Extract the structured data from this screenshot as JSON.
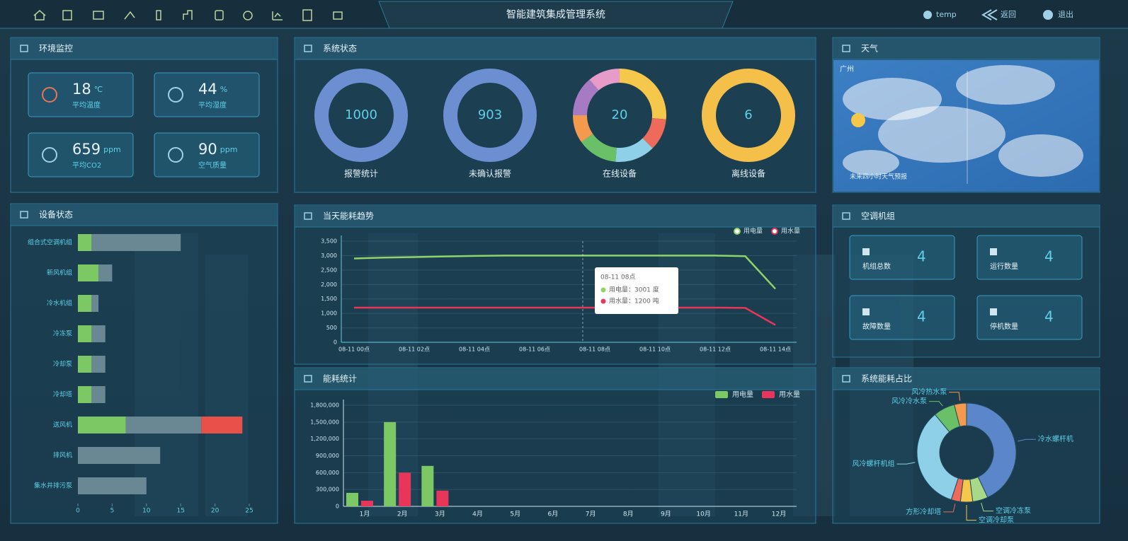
{
  "header": {
    "title": "智能建筑集成管理系统",
    "user": "temp",
    "back": "返回",
    "logout": "退出"
  },
  "environment": {
    "title": "环境监控",
    "items": [
      {
        "value": 18,
        "unit": "℃",
        "label": "平均温度"
      },
      {
        "value": 44,
        "unit": "%",
        "label": "平均湿度"
      },
      {
        "value": 659,
        "unit": "ppm",
        "label": "平均CO2"
      },
      {
        "value": 90,
        "unit": "ppm",
        "label": "空气质量"
      }
    ]
  },
  "system_status": {
    "title": "系统状态",
    "items": [
      {
        "value": 1000,
        "label": "报警统计"
      },
      {
        "value": 903,
        "label": "未确认报警"
      },
      {
        "value": 20,
        "label": "在线设备"
      },
      {
        "value": 6,
        "label": "离线设备"
      }
    ]
  },
  "weather": {
    "title": "天气",
    "city": "广州",
    "note": "未来四小时天气预报"
  },
  "aircon": {
    "title": "空调机组",
    "items": [
      {
        "label": "机组总数",
        "value": 4
      },
      {
        "label": "运行数量",
        "value": 4
      },
      {
        "label": "故障数量",
        "value": 4
      },
      {
        "label": "停机数量",
        "value": 4
      }
    ]
  },
  "chart_data": [
    {
      "type": "bar",
      "orientation": "horizontal",
      "stacked": true,
      "title": "设备状态",
      "categories": [
        "组合式空调机组",
        "新风机组",
        "冷水机组",
        "冷冻泵",
        "冷却泵",
        "冷却塔",
        "送风机",
        "排风机",
        "集水井排污泵"
      ],
      "series": [
        {
          "color": "#7cc864",
          "values": [
            2,
            3,
            2,
            2,
            2,
            2,
            7,
            0,
            0
          ]
        },
        {
          "color": "#6a8794",
          "values": [
            13,
            2,
            1,
            2,
            2,
            2,
            11,
            12,
            10
          ]
        },
        {
          "color": "#e8504a",
          "values": [
            0,
            0,
            0,
            0,
            0,
            0,
            6,
            0,
            0
          ]
        }
      ],
      "xlim": [
        0,
        25
      ],
      "xticks": [
        0,
        5,
        10,
        15,
        20,
        25
      ]
    },
    {
      "type": "line",
      "title": "当天能耗趋势",
      "categories": [
        "08-11 00点",
        null,
        "08-11 02点",
        null,
        "08-11 04点",
        null,
        "08-11 06点",
        null,
        "08-11 08点",
        null,
        "08-11 10点",
        null,
        "08-11 12点",
        null,
        "08-11 14点"
      ],
      "series": [
        {
          "name": "用电量",
          "color": "#8fd36a",
          "values": [
            2900,
            2930,
            2950,
            2970,
            2990,
            3000,
            3001,
            3001,
            3001,
            3000,
            3000,
            3000,
            3000,
            2980,
            1850
          ]
        },
        {
          "name": "用水量",
          "color": "#e8365a",
          "values": [
            1200,
            1200,
            1200,
            1200,
            1200,
            1200,
            1200,
            1200,
            1200,
            1200,
            1200,
            1200,
            1200,
            1190,
            600
          ]
        }
      ],
      "ylim": [
        0,
        3500
      ],
      "yticks": [
        0,
        500,
        {
          "value": 1000,
          "label": "1,000"
        },
        {
          "value": 1500,
          "label": "1,500"
        },
        {
          "value": 2000,
          "label": "2,000"
        },
        {
          "value": 2500,
          "label": "2,500"
        },
        {
          "value": 3000,
          "label": "3,000"
        },
        {
          "value": 3500,
          "label": "3,500"
        }
      ],
      "grid": true,
      "tooltip": {
        "title": "08-11 08点",
        "lines": [
          "用电量：3001 度",
          "用水量：1200 吨"
        ]
      }
    },
    {
      "type": "bar",
      "title": "能耗统计",
      "categories": [
        "1月",
        "2月",
        "3月",
        "4月",
        "5月",
        "6月",
        "7月",
        "8月",
        "9月",
        "10月",
        "11月",
        "12月"
      ],
      "series": [
        {
          "name": "用电量",
          "color": "#7cc864",
          "values": [
            240000,
            1500000,
            720000,
            null,
            null,
            null,
            null,
            null,
            null,
            null,
            null,
            null
          ]
        },
        {
          "name": "用水量",
          "color": "#e8365a",
          "values": [
            100000,
            600000,
            280000,
            null,
            null,
            null,
            null,
            null,
            null,
            null,
            null,
            null
          ]
        }
      ],
      "ylim": [
        0,
        1800000
      ],
      "yticks": [
        0,
        {
          "value": 300000,
          "label": "300,000"
        },
        {
          "value": 600000,
          "label": "600,000"
        },
        {
          "value": 900000,
          "label": "900,000"
        },
        {
          "value": 1200000,
          "label": "1,200,000"
        },
        {
          "value": 1500000,
          "label": "1,500,000"
        },
        {
          "value": 1800000,
          "label": "1,800,000"
        }
      ],
      "grid": true
    },
    {
      "type": "pie",
      "title": "系统能耗占比",
      "categories": [
        "冷水螺杆机",
        "空调冷冻泵",
        "空调冷却泵",
        "方形冷却塔",
        "风冷螺杆机组",
        "风冷冷水泵",
        "风冷热水泵"
      ],
      "values": [
        43,
        5,
        4,
        3,
        34,
        7,
        4
      ],
      "colors": [
        "#5b86c9",
        "#a8d98a",
        "#f5c84c",
        "#ee6a5a",
        "#8ed0e8",
        "#6abf69",
        "#f39a4e"
      ]
    }
  ]
}
